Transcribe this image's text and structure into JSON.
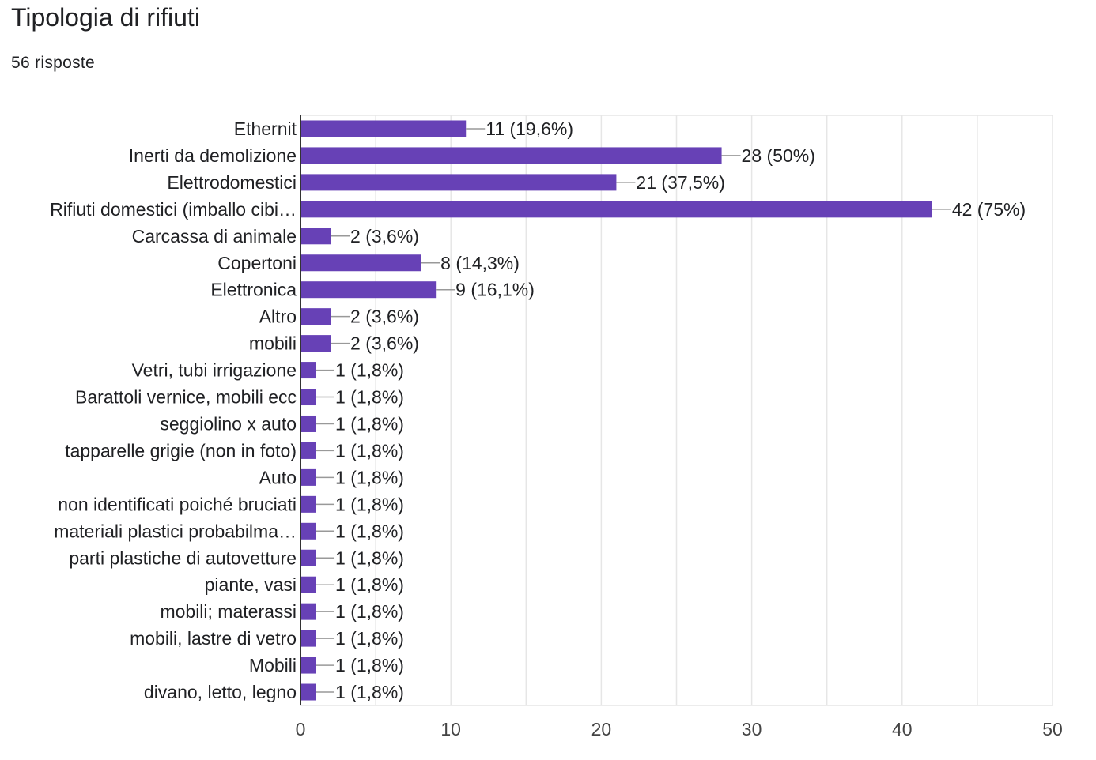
{
  "header": {
    "title": "Tipologia di rifiuti",
    "response_count": "56 risposte"
  },
  "colors": {
    "bar": "#6741b6",
    "axis": "#333333",
    "grid": "#e6e6e6",
    "connector": "#999999",
    "text": "#202124",
    "tick_text": "#444444"
  },
  "chart_data": {
    "type": "bar",
    "orientation": "horizontal",
    "categories": [
      "Ethernit",
      "Inerti da demolizione",
      "Elettrodomestici",
      "Rifiuti domestici (imballo cibi…",
      "Carcassa di animale",
      "Copertoni",
      "Elettronica",
      "Altro",
      "mobili",
      "Vetri, tubi irrigazione",
      "Barattoli vernice, mobili ecc",
      "seggiolino x auto",
      "tapparelle grigie (non in foto)",
      "Auto",
      "non identificati poiché bruciati",
      "materiali plastici probabilma…",
      "parti plastiche di autovetture",
      "piante, vasi",
      "mobili; materassi",
      "mobili, lastre di vetro",
      "Mobili",
      "divano, letto, legno"
    ],
    "values": [
      11,
      28,
      21,
      42,
      2,
      8,
      9,
      2,
      2,
      1,
      1,
      1,
      1,
      1,
      1,
      1,
      1,
      1,
      1,
      1,
      1,
      1
    ],
    "data_labels": [
      "11 (19,6%)",
      "28 (50%)",
      "21 (37,5%)",
      "42 (75%)",
      "2 (3,6%)",
      "8 (14,3%)",
      "9 (16,1%)",
      "2 (3,6%)",
      "2 (3,6%)",
      "1 (1,8%)",
      "1 (1,8%)",
      "1 (1,8%)",
      "1 (1,8%)",
      "1 (1,8%)",
      "1 (1,8%)",
      "1 (1,8%)",
      "1 (1,8%)",
      "1 (1,8%)",
      "1 (1,8%)",
      "1 (1,8%)",
      "1 (1,8%)",
      "1 (1,8%)"
    ],
    "xlim": [
      0,
      50
    ],
    "xticks": [
      0,
      10,
      20,
      30,
      40,
      50
    ],
    "minor_grid_step": 5,
    "grid": true,
    "legend": "none"
  }
}
